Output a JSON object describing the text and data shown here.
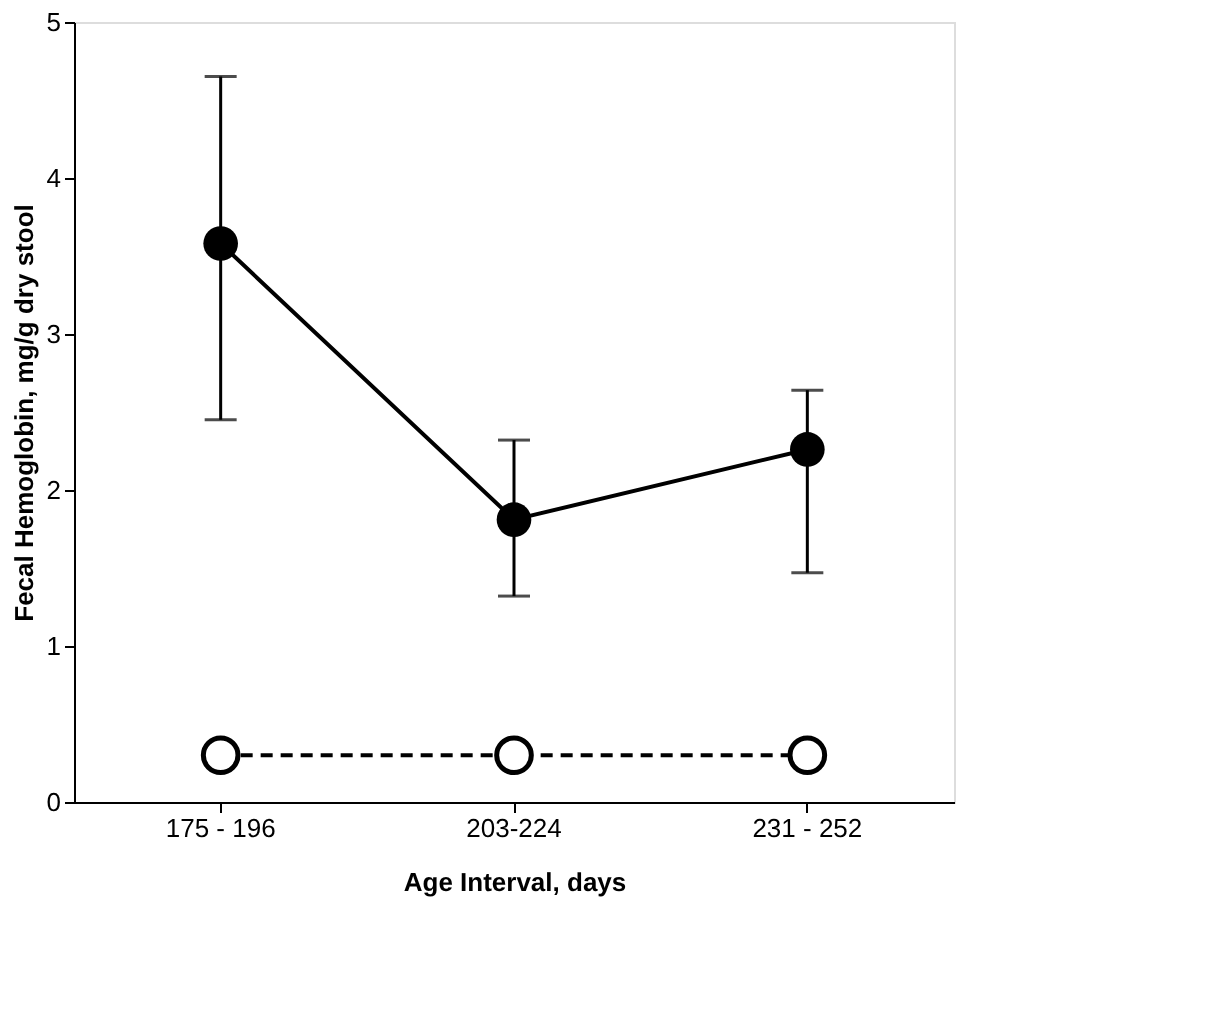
{
  "chart_data": {
    "type": "line",
    "xlabel": "Age Interval, days",
    "ylabel": "Fecal Hemoglobin, mg/g dry stool",
    "categories": [
      "175 - 196",
      "203-224",
      "231 - 252"
    ],
    "series": [
      {
        "color": "#000000",
        "values": [
          3.58,
          1.81,
          2.26
        ],
        "errors": [
          [
            2.45,
            4.65
          ],
          [
            1.32,
            2.32
          ],
          [
            1.47,
            2.64
          ]
        ],
        "marker": "circle",
        "line_style": "solid"
      },
      {
        "color": "#000000",
        "values": [
          0.3,
          0.3,
          0.3
        ],
        "marker": "circle",
        "line_style": "dashed"
      }
    ],
    "ylim": [
      0,
      5
    ],
    "yticks": [
      0,
      1,
      2,
      3,
      4,
      5
    ],
    "grid": false
  }
}
